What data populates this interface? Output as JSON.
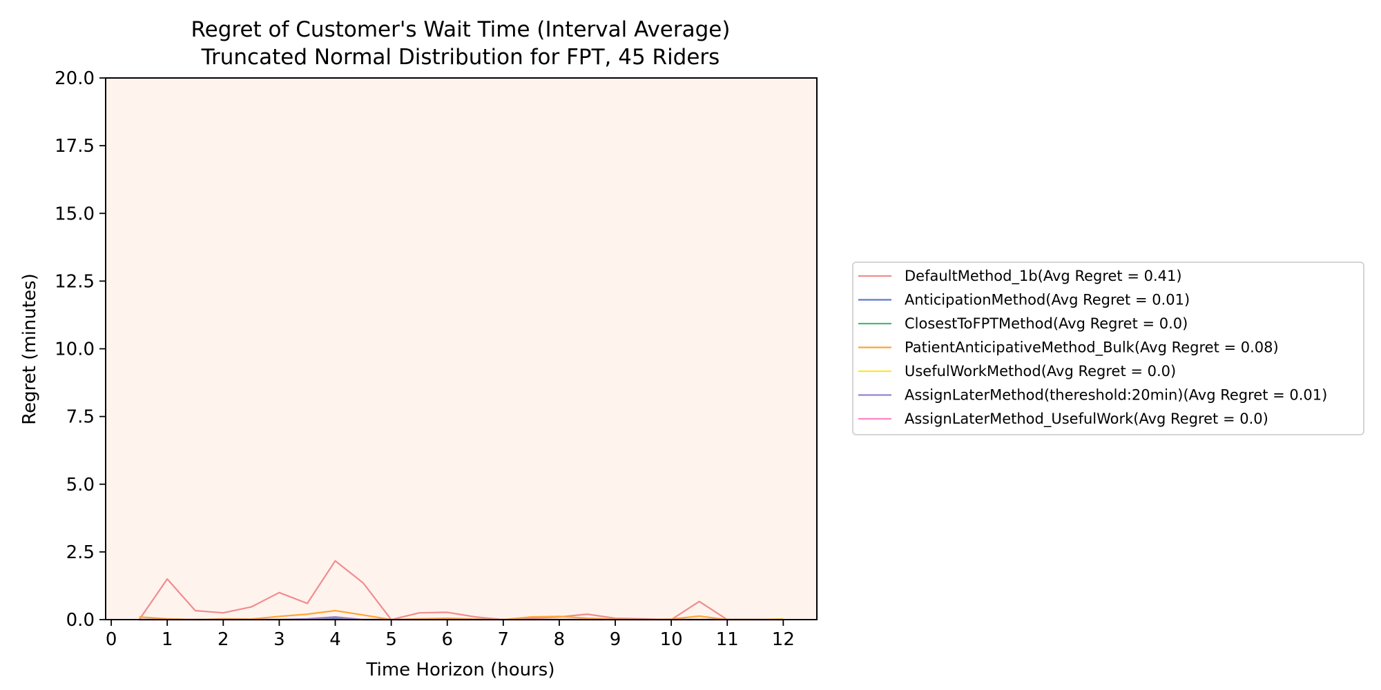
{
  "chart_data": {
    "type": "line",
    "title": "Regret of Customer's Wait Time (Interval Average)",
    "subtitle": "Truncated Normal Distribution for FPT, 45 Riders",
    "xlabel": "Time Horizon (hours)",
    "ylabel": "Regret (minutes)",
    "xlim": [
      -0.1,
      12.6
    ],
    "ylim": [
      0,
      20
    ],
    "xticks": [
      "0",
      "1",
      "2",
      "3",
      "4",
      "5",
      "6",
      "7",
      "8",
      "9",
      "10",
      "11",
      "12"
    ],
    "yticks": [
      "0.0",
      "2.5",
      "5.0",
      "7.5",
      "10.0",
      "12.5",
      "15.0",
      "17.5",
      "20.0"
    ],
    "grid": false,
    "legend_position": "right",
    "plot_background": "#fff3ee",
    "x": [
      0.5,
      1,
      1.5,
      2,
      2.5,
      3,
      3.5,
      4,
      4.5,
      5,
      5.5,
      6,
      6.5,
      7,
      7.5,
      8,
      8.5,
      9,
      9.5,
      10,
      10.5,
      11,
      11.5,
      12
    ],
    "series": [
      {
        "name": "DefaultMethod_1b(Avg Regret = 0.41)",
        "color": "#f08c8c",
        "values": [
          0.0,
          1.5,
          0.33,
          0.25,
          0.47,
          1.0,
          0.6,
          2.17,
          1.35,
          0.0,
          0.25,
          0.27,
          0.1,
          0.0,
          0.05,
          0.1,
          0.2,
          0.05,
          0.03,
          0.0,
          0.67,
          0.0,
          0.0,
          0.0
        ]
      },
      {
        "name": "AnticipationMethod(Avg Regret = 0.01)",
        "color": "#5a78d2",
        "values": [
          0.0,
          0.0,
          0.0,
          0.0,
          0.0,
          0.0,
          0.0,
          0.05,
          0.0,
          0.0,
          0.0,
          0.0,
          0.0,
          0.0,
          0.0,
          0.0,
          0.0,
          0.0,
          0.0,
          0.0,
          0.0,
          0.0,
          0.0,
          0.0
        ]
      },
      {
        "name": "ClosestToFPTMethod(Avg Regret = 0.0)",
        "color": "#50b478",
        "values": [
          0.0,
          0.0,
          0.0,
          0.0,
          0.0,
          0.0,
          0.0,
          0.0,
          0.0,
          0.0,
          0.0,
          0.0,
          0.0,
          0.0,
          0.0,
          0.0,
          0.0,
          0.0,
          0.0,
          0.0,
          0.0,
          0.0,
          0.0,
          0.0
        ]
      },
      {
        "name": "PatientAnticipativeMethod_Bulk(Avg Regret = 0.08)",
        "color": "#ffa532",
        "values": [
          0.1,
          0.03,
          0.0,
          0.03,
          0.02,
          0.12,
          0.2,
          0.33,
          0.17,
          0.0,
          0.03,
          0.05,
          0.02,
          0.0,
          0.1,
          0.12,
          0.05,
          0.02,
          0.0,
          0.02,
          0.13,
          0.0,
          0.0,
          0.02
        ]
      },
      {
        "name": "UsefulWorkMethod(Avg Regret = 0.0)",
        "color": "#ffe632",
        "values": [
          0.0,
          0.0,
          0.0,
          0.0,
          0.0,
          0.0,
          0.0,
          0.0,
          0.0,
          0.0,
          0.0,
          0.0,
          0.0,
          0.0,
          0.0,
          0.0,
          0.0,
          0.0,
          0.0,
          0.0,
          0.0,
          0.0,
          0.0,
          0.03
        ]
      },
      {
        "name": "AssignLaterMethod(thereshold:20min)(Avg Regret = 0.01)",
        "color": "#9682d2",
        "values": [
          0.0,
          0.0,
          0.0,
          0.0,
          0.0,
          0.0,
          0.03,
          0.1,
          0.0,
          0.0,
          0.0,
          0.0,
          0.0,
          0.0,
          0.0,
          0.0,
          0.0,
          0.0,
          0.0,
          0.0,
          0.0,
          0.0,
          0.0,
          0.0
        ]
      },
      {
        "name": "AssignLaterMethod_UsefulWork(Avg Regret = 0.0)",
        "color": "#ff82c3",
        "values": [
          0.0,
          0.0,
          0.0,
          0.0,
          0.0,
          0.0,
          0.0,
          0.0,
          0.0,
          0.0,
          0.0,
          0.0,
          0.0,
          0.0,
          0.0,
          0.0,
          0.0,
          0.0,
          0.0,
          0.0,
          0.0,
          0.0,
          0.0,
          0.0
        ]
      }
    ]
  }
}
